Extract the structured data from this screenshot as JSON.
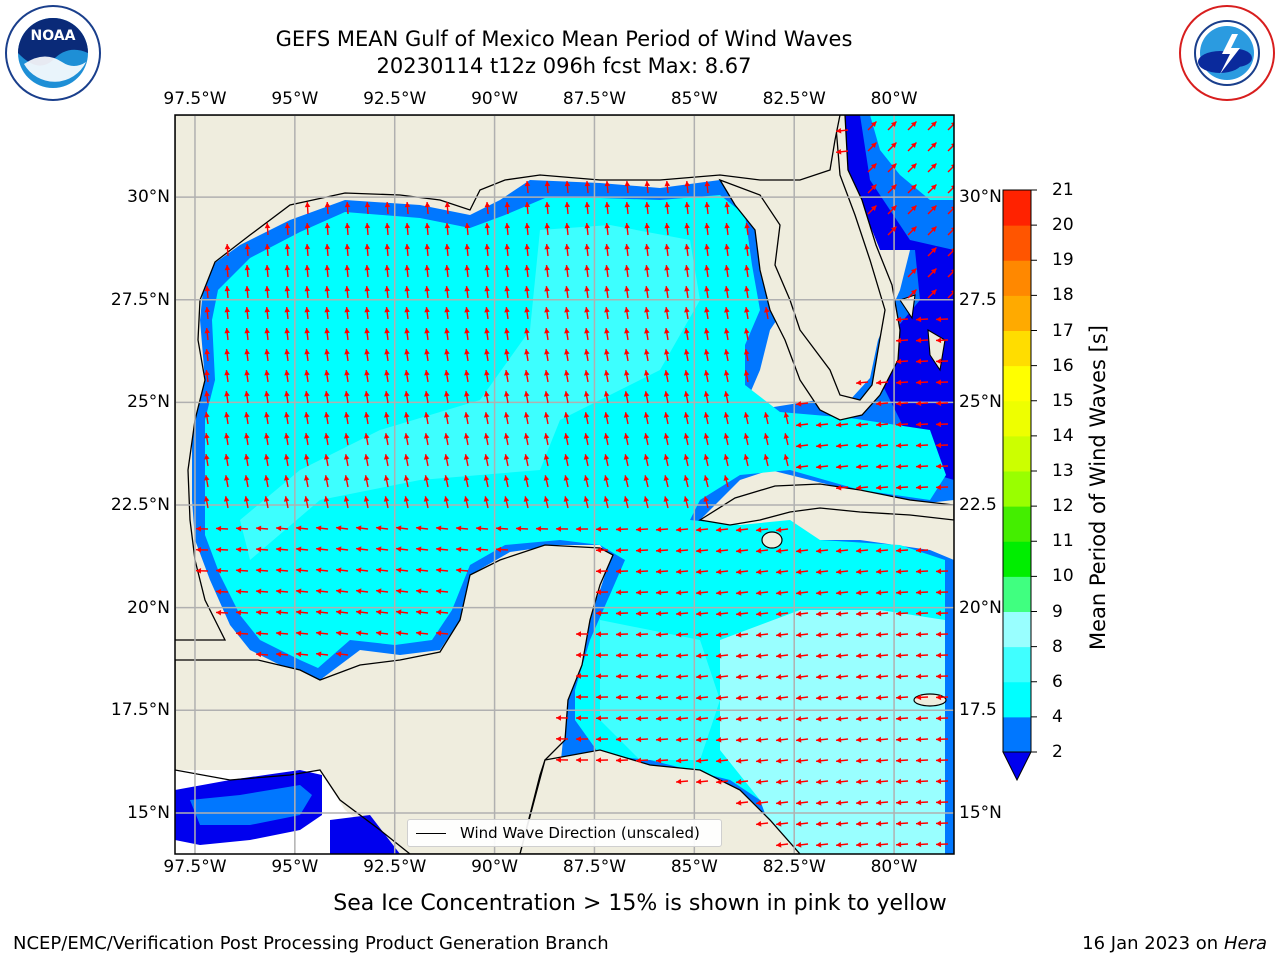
{
  "header": {
    "title_line1": "GEFS MEAN Gulf of Mexico Mean Period of Wind Waves",
    "title_line2": "20230114 t12z 096h fcst   Max: 8.67"
  },
  "logos": {
    "left": {
      "text": "NOAA",
      "ring_text": "NATIONAL OCEANIC AND ATMOSPHERIC ADMINISTRATION · U.S. DEPARTMENT OF COMMERCE"
    },
    "right": {
      "text": "NATIONAL WEATHER SERVICE"
    }
  },
  "map": {
    "lon_labels": [
      "97.5°W",
      "95°W",
      "92.5°W",
      "90°W",
      "87.5°W",
      "85°W",
      "82.5°W",
      "80°W"
    ],
    "lat_labels_left": [
      "30°N",
      "27.5°N",
      "25°N",
      "22.5°N",
      "20°N",
      "17.5°N",
      "15°N"
    ],
    "lat_labels_right": [
      "30°N",
      "27.5",
      "25°N",
      "22.5",
      "20°N",
      "17.5",
      "15°N"
    ],
    "lon_range": [
      -98.0,
      -78.5
    ],
    "lat_range": [
      14.0,
      32.0
    ],
    "grid": true,
    "colors": {
      "land": "#efedde",
      "frame": "#000000",
      "grid": "#b0b0b0",
      "arrow": "#ff0000"
    }
  },
  "legend": {
    "label": "Wind Wave Direction (unscaled)"
  },
  "colorbar": {
    "title": "Mean Period of Wind Waves [s]",
    "tick_labels": [
      "2",
      "4",
      "6",
      "8",
      "9",
      "10",
      "11",
      "12",
      "13",
      "14",
      "15",
      "16",
      "17",
      "18",
      "19",
      "20",
      "21"
    ],
    "colors": [
      "#0077ff",
      "#00ffff",
      "#40ffff",
      "#99ffff",
      "#40ff80",
      "#00ee00",
      "#44ee00",
      "#99ff00",
      "#ccff00",
      "#eeff00",
      "#ffff00",
      "#ffdd00",
      "#ffaa00",
      "#ff8800",
      "#ff5500",
      "#ff2200"
    ],
    "under_color": "#0000ee"
  },
  "footer": {
    "subtitle": "Sea Ice Concentration > 15% is shown in pink to yellow",
    "left": "NCEP/EMC/Verification Post Processing Product Generation Branch",
    "right_prefix": "16 Jan 2023 on ",
    "right_emph": "Hera"
  }
}
